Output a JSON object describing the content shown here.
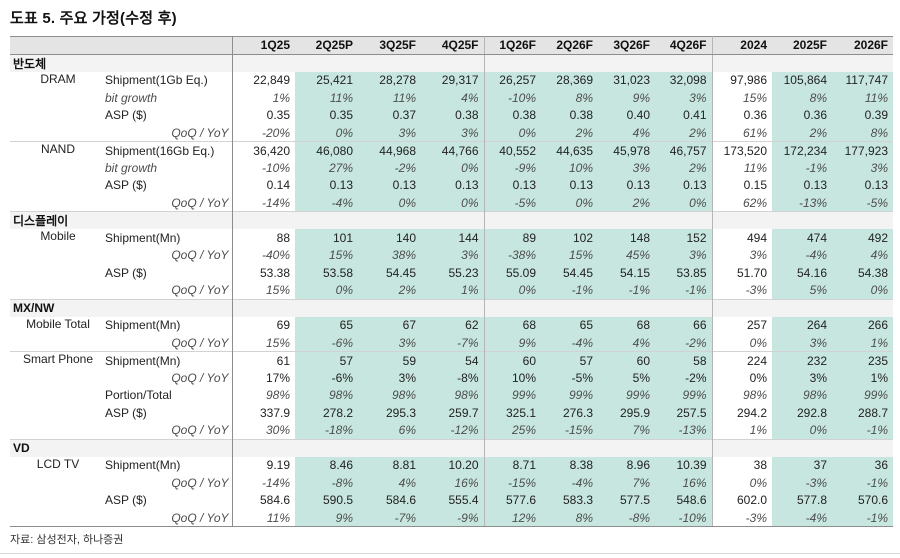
{
  "title": "도표 5. 주요 가정(수정 후)",
  "source": "자료: 삼성전자, 하나증권",
  "colors": {
    "highlight": "#c7e6df",
    "header_bg": "#e4e4e4",
    "section_bg": "#f3f3f3"
  },
  "columns": [
    "1Q25",
    "2Q25P",
    "3Q25F",
    "4Q25F",
    "1Q26F",
    "2Q26F",
    "3Q26F",
    "4Q26F",
    "2024",
    "2025F",
    "2026F"
  ],
  "highlight_columns": [
    1,
    2,
    3,
    4,
    5,
    6,
    7,
    9,
    10
  ],
  "divider_after_columns": [
    3,
    7
  ],
  "sections": [
    {
      "id": "semiconductor",
      "name": "반도체",
      "groups": [
        {
          "id": "dram",
          "item": "DRAM",
          "rows": [
            {
              "label": "Shipment(1Gb Eq.)",
              "label_style": "normal",
              "label_align": "left",
              "value_style": "normal",
              "values": [
                "22,849",
                "25,421",
                "28,278",
                "29,317",
                "26,257",
                "28,369",
                "31,023",
                "32,098",
                "97,986",
                "105,864",
                "117,747"
              ]
            },
            {
              "label": "bit growth",
              "label_style": "italic",
              "label_align": "left",
              "value_style": "italic",
              "values": [
                "1%",
                "11%",
                "11%",
                "4%",
                "-10%",
                "8%",
                "9%",
                "3%",
                "15%",
                "8%",
                "11%"
              ]
            },
            {
              "label": "ASP ($)",
              "label_style": "normal",
              "label_align": "left",
              "value_style": "normal",
              "values": [
                "0.35",
                "0.35",
                "0.37",
                "0.38",
                "0.38",
                "0.38",
                "0.40",
                "0.41",
                "0.36",
                "0.36",
                "0.39"
              ]
            },
            {
              "label": "QoQ / YoY",
              "label_style": "italic",
              "label_align": "right",
              "value_style": "italic",
              "values": [
                "-20%",
                "0%",
                "3%",
                "3%",
                "0%",
                "2%",
                "4%",
                "2%",
                "61%",
                "2%",
                "8%"
              ]
            }
          ]
        },
        {
          "id": "nand",
          "item": "NAND",
          "rows": [
            {
              "label": "Shipment(16Gb Eq.)",
              "label_style": "normal",
              "label_align": "left",
              "value_style": "normal",
              "values": [
                "36,420",
                "46,080",
                "44,968",
                "44,766",
                "40,552",
                "44,635",
                "45,978",
                "46,757",
                "173,520",
                "172,234",
                "177,923"
              ]
            },
            {
              "label": "bit growth",
              "label_style": "italic",
              "label_align": "left",
              "value_style": "italic",
              "values": [
                "-10%",
                "27%",
                "-2%",
                "0%",
                "-9%",
                "10%",
                "3%",
                "2%",
                "11%",
                "-1%",
                "3%"
              ]
            },
            {
              "label": "ASP ($)",
              "label_style": "normal",
              "label_align": "left",
              "value_style": "normal",
              "values": [
                "0.14",
                "0.13",
                "0.13",
                "0.13",
                "0.13",
                "0.13",
                "0.13",
                "0.13",
                "0.15",
                "0.13",
                "0.13"
              ]
            },
            {
              "label": "QoQ / YoY",
              "label_style": "italic",
              "label_align": "right",
              "value_style": "italic",
              "values": [
                "-14%",
                "-4%",
                "0%",
                "0%",
                "-5%",
                "0%",
                "2%",
                "0%",
                "62%",
                "-13%",
                "-5%"
              ]
            }
          ]
        }
      ]
    },
    {
      "id": "display",
      "name": "디스플레이",
      "groups": [
        {
          "id": "mobile",
          "item": "Mobile",
          "rows": [
            {
              "label": "Shipment(Mn)",
              "label_style": "normal",
              "label_align": "left",
              "value_style": "normal",
              "values": [
                "88",
                "101",
                "140",
                "144",
                "89",
                "102",
                "148",
                "152",
                "494",
                "474",
                "492"
              ]
            },
            {
              "label": "QoQ / YoY",
              "label_style": "italic",
              "label_align": "right",
              "value_style": "italic",
              "values": [
                "-40%",
                "15%",
                "38%",
                "3%",
                "-38%",
                "15%",
                "45%",
                "3%",
                "3%",
                "-4%",
                "4%"
              ]
            },
            {
              "label": "ASP ($)",
              "label_style": "normal",
              "label_align": "left",
              "value_style": "normal",
              "values": [
                "53.38",
                "53.58",
                "54.45",
                "55.23",
                "55.09",
                "54.45",
                "54.15",
                "53.85",
                "51.70",
                "54.16",
                "54.38"
              ]
            },
            {
              "label": "QoQ / YoY",
              "label_style": "italic",
              "label_align": "right",
              "value_style": "italic",
              "values": [
                "15%",
                "0%",
                "2%",
                "1%",
                "0%",
                "-1%",
                "-1%",
                "-1%",
                "-3%",
                "5%",
                "0%"
              ]
            }
          ]
        }
      ]
    },
    {
      "id": "mx-nw",
      "name": "MX/NW",
      "groups": [
        {
          "id": "mobile-total",
          "item": "Mobile Total",
          "rows": [
            {
              "label": "Shipment(Mn)",
              "label_style": "normal",
              "label_align": "left",
              "value_style": "normal",
              "values": [
                "69",
                "65",
                "67",
                "62",
                "68",
                "65",
                "68",
                "66",
                "257",
                "264",
                "266"
              ]
            },
            {
              "label": "QoQ / YoY",
              "label_style": "italic",
              "label_align": "right",
              "value_style": "italic",
              "values": [
                "15%",
                "-6%",
                "3%",
                "-7%",
                "9%",
                "-4%",
                "4%",
                "-2%",
                "0%",
                "3%",
                "1%"
              ]
            }
          ]
        },
        {
          "id": "smart-phone",
          "item": "Smart Phone",
          "rows": [
            {
              "label": "Shipment(Mn)",
              "label_style": "normal",
              "label_align": "left",
              "value_style": "normal",
              "values": [
                "61",
                "57",
                "59",
                "54",
                "60",
                "57",
                "60",
                "58",
                "224",
                "232",
                "235"
              ]
            },
            {
              "label": "QoQ / YoY",
              "label_style": "italic",
              "label_align": "right",
              "value_style": "normal",
              "values": [
                "17%",
                "-6%",
                "3%",
                "-8%",
                "10%",
                "-5%",
                "5%",
                "-2%",
                "0%",
                "3%",
                "1%"
              ]
            },
            {
              "label": "Portion/Total",
              "label_style": "normal",
              "label_align": "left",
              "value_style": "italic",
              "values": [
                "98%",
                "98%",
                "98%",
                "98%",
                "99%",
                "99%",
                "99%",
                "99%",
                "98%",
                "98%",
                "99%"
              ]
            },
            {
              "label": "ASP ($)",
              "label_style": "normal",
              "label_align": "left",
              "value_style": "normal",
              "values": [
                "337.9",
                "278.2",
                "295.3",
                "259.7",
                "325.1",
                "276.3",
                "295.9",
                "257.5",
                "294.2",
                "292.8",
                "288.7"
              ]
            },
            {
              "label": "QoQ / YoY",
              "label_style": "italic",
              "label_align": "right",
              "value_style": "italic",
              "values": [
                "30%",
                "-18%",
                "6%",
                "-12%",
                "25%",
                "-15%",
                "7%",
                "-13%",
                "1%",
                "0%",
                "-1%"
              ]
            }
          ]
        }
      ]
    },
    {
      "id": "vd",
      "name": "VD",
      "groups": [
        {
          "id": "lcd-tv",
          "item": "LCD TV",
          "rows": [
            {
              "label": "Shipment(Mn)",
              "label_style": "normal",
              "label_align": "left",
              "value_style": "normal",
              "values": [
                "9.19",
                "8.46",
                "8.81",
                "10.20",
                "8.71",
                "8.38",
                "8.96",
                "10.39",
                "38",
                "37",
                "36"
              ]
            },
            {
              "label": "QoQ / YoY",
              "label_style": "italic",
              "label_align": "right",
              "value_style": "italic",
              "values": [
                "-14%",
                "-8%",
                "4%",
                "16%",
                "-15%",
                "-4%",
                "7%",
                "16%",
                "0%",
                "-3%",
                "-1%"
              ]
            },
            {
              "label": "ASP ($)",
              "label_style": "normal",
              "label_align": "left",
              "value_style": "normal",
              "values": [
                "584.6",
                "590.5",
                "584.6",
                "555.4",
                "577.6",
                "583.3",
                "577.5",
                "548.6",
                "602.0",
                "577.8",
                "570.6"
              ]
            },
            {
              "label": "QoQ / YoY",
              "label_style": "italic",
              "label_align": "right",
              "value_style": "italic",
              "values": [
                "11%",
                "9%",
                "-7%",
                "-9%",
                "12%",
                "8%",
                "-8%",
                "-10%",
                "-3%",
                "-4%",
                "-1%"
              ]
            }
          ]
        }
      ]
    }
  ]
}
